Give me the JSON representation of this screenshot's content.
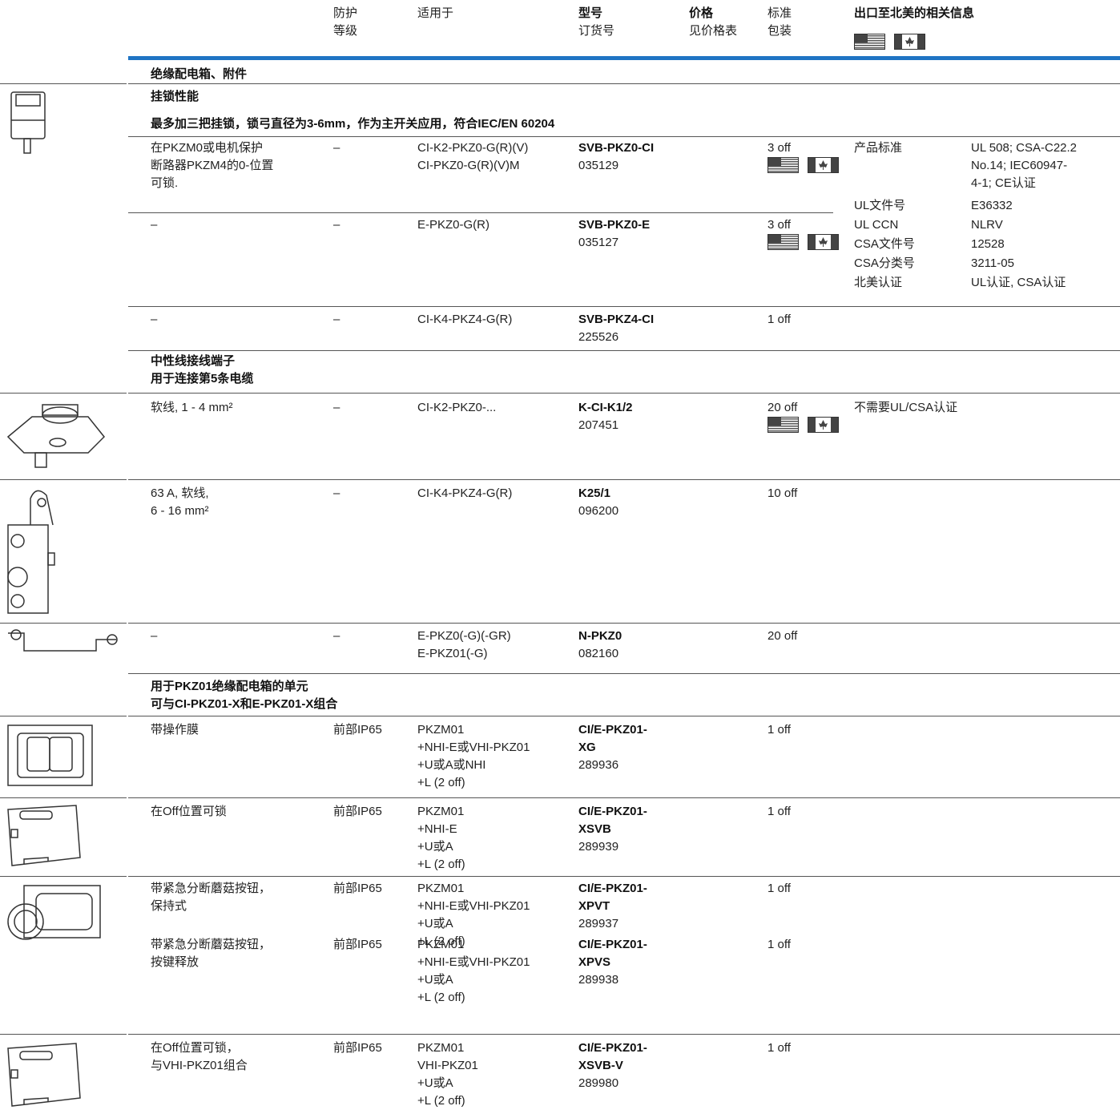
{
  "header": {
    "protection": "防护\n等级",
    "suitable": "适用于",
    "type_label": "型号",
    "order_label": "订货号",
    "price_label": "价格",
    "price_note": "见价格表",
    "pack": "标准\n包装",
    "export": "出口至北美的相关信息"
  },
  "sections": [
    "绝缘配电箱、附件",
    "挂锁性能",
    "最多加三把挂锁，锁弓直径为3-6mm，作为主开关应用，符合IEC/EN 60204",
    "中性线接线端子\n用于连接第5条电缆",
    "用于PKZ01绝缘配电箱的单元\n可与CI-PKZ01-X和E-PKZ01-X组合"
  ],
  "rows": [
    {
      "description": "在PKZM0或电机保护\n断路器PKZM4的0-位置\n可锁.",
      "protection": "–",
      "suitable": "CI-K2-PKZ0-G(R)(V)\nCI-PKZ0-G(R)(V)M",
      "type": "SVB-PKZ0-CI",
      "order_no": "035129",
      "pack": "3 off"
    },
    {
      "description": "–",
      "protection": "–",
      "suitable": "E-PKZ0-G(R)",
      "type": "SVB-PKZ0-E",
      "order_no": "035127",
      "pack": "3 off"
    },
    {
      "description": "–",
      "protection": "–",
      "suitable": "CI-K4-PKZ4-G(R)",
      "type": "SVB-PKZ4-CI",
      "order_no": "225526",
      "pack": "1 off"
    },
    {
      "description": "软线, 1 - 4 mm²",
      "protection": "–",
      "suitable": "CI-K2-PKZ0-...",
      "type": "K-CI-K1/2",
      "order_no": "207451",
      "pack": "20 off",
      "na_note": "不需要UL/CSA认证"
    },
    {
      "description": "63 A, 软线,\n6 - 16 mm²",
      "protection": "–",
      "suitable": "CI-K4-PKZ4-G(R)",
      "type": "K25/1",
      "order_no": "096200",
      "pack": "10 off"
    },
    {
      "description": "–",
      "protection": "–",
      "suitable": "E-PKZ0(-G)(-GR)\nE-PKZ01(-G)",
      "type": "N-PKZ0",
      "order_no": "082160",
      "pack": "20 off"
    },
    {
      "description": "带操作膜",
      "protection": "前部IP65",
      "suitable": "PKZM01\n+NHI-E或VHI-PKZ01\n+U或A或NHI\n+L (2 off)",
      "type": "CI/E-PKZ01-\nXG",
      "order_no": "289936",
      "pack": "1 off"
    },
    {
      "description": "在Off位置可锁",
      "protection": "前部IP65",
      "suitable": "PKZM01\n+NHI-E\n+U或A\n+L (2 off)",
      "type": "CI/E-PKZ01-\nXSVB",
      "order_no": "289939",
      "pack": "1 off"
    },
    {
      "description": "带紧急分断蘑菇按钮，\n保持式",
      "protection": "前部IP65",
      "suitable": "PKZM01\n+NHI-E或VHI-PKZ01\n+U或A\n+L (2 off)",
      "type": "CI/E-PKZ01-\nXPVT",
      "order_no": "289937",
      "pack": "1 off"
    },
    {
      "description": "带紧急分断蘑菇按钮，\n按键释放",
      "protection": "前部IP65",
      "suitable": "PKZM01\n+NHI-E或VHI-PKZ01\n+U或A\n+L (2 off)",
      "type": "CI/E-PKZ01-\nXPVS",
      "order_no": "289938",
      "pack": "1 off"
    },
    {
      "description": "在Off位置可锁，\n与VHI-PKZ01组合",
      "protection": "前部IP65",
      "suitable": "PKZM01\nVHI-PKZ01\n+U或A\n+L (2 off)",
      "type": "CI/E-PKZ01-\nXSVB-V",
      "order_no": "289980",
      "pack": "1 off"
    }
  ],
  "na_info": [
    [
      "产品标准",
      "UL 508; CSA-C22.2\nNo.14; IEC60947-\n4-1; CE认证"
    ],
    [
      "UL文件号",
      "E36332"
    ],
    [
      "UL CCN",
      "NLRV"
    ],
    [
      "CSA文件号",
      "12528"
    ],
    [
      "CSA分类号",
      "3211-05"
    ],
    [
      "北美认证",
      "UL认证, CSA认证"
    ]
  ]
}
